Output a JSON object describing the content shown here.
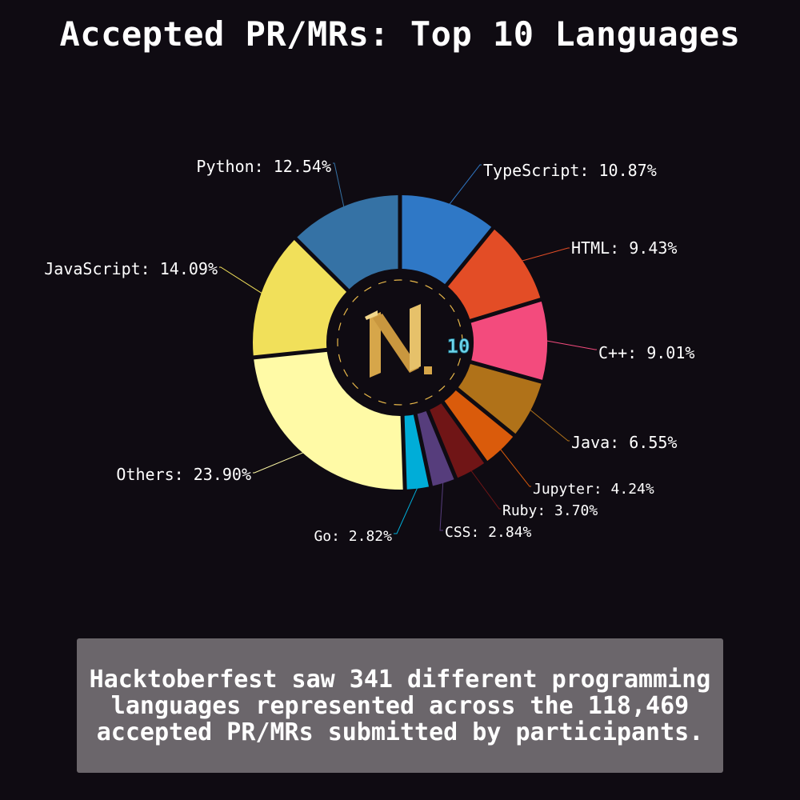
{
  "title": "Accepted PR/MRs: Top 10 Languages",
  "caption": "Hacktoberfest saw 341 different programming languages represented across the 118,469 accepted PR/MRs submitted by participants.",
  "center_logo": {
    "icon": "hacktoberfest-h-logo",
    "badge": "10"
  },
  "chart_data": {
    "type": "pie",
    "title": "Accepted PR/MRs: Top 10 Languages",
    "unit": "%",
    "slices": [
      {
        "name": "TypeScript",
        "value": 10.87,
        "color": "#2f78c6",
        "label": "TypeScript: 10.87%"
      },
      {
        "name": "HTML",
        "value": 9.43,
        "color": "#e34d26",
        "label": "HTML: 9.43%"
      },
      {
        "name": "C++",
        "value": 9.01,
        "color": "#f34b7d",
        "label": "C++: 9.01%"
      },
      {
        "name": "Java",
        "value": 6.55,
        "color": "#b07219",
        "label": "Java: 6.55%"
      },
      {
        "name": "Jupyter",
        "value": 4.24,
        "color": "#da5b0b",
        "label": "Jupyter: 4.24%"
      },
      {
        "name": "Ruby",
        "value": 3.7,
        "color": "#701516",
        "label": "Ruby: 3.70%"
      },
      {
        "name": "CSS",
        "value": 2.84,
        "color": "#563d7c",
        "label": "CSS: 2.84%"
      },
      {
        "name": "Go",
        "value": 2.82,
        "color": "#00add8",
        "label": "Go: 2.82%"
      },
      {
        "name": "Others",
        "value": 23.9,
        "color": "#fffaa6",
        "label": "Others: 23.90%"
      },
      {
        "name": "JavaScript",
        "value": 14.09,
        "color": "#f1e05a",
        "label": "JavaScript: 14.09%"
      },
      {
        "name": "Python",
        "value": 12.54,
        "color": "#3572a5",
        "label": "Python: 12.54%"
      }
    ]
  }
}
